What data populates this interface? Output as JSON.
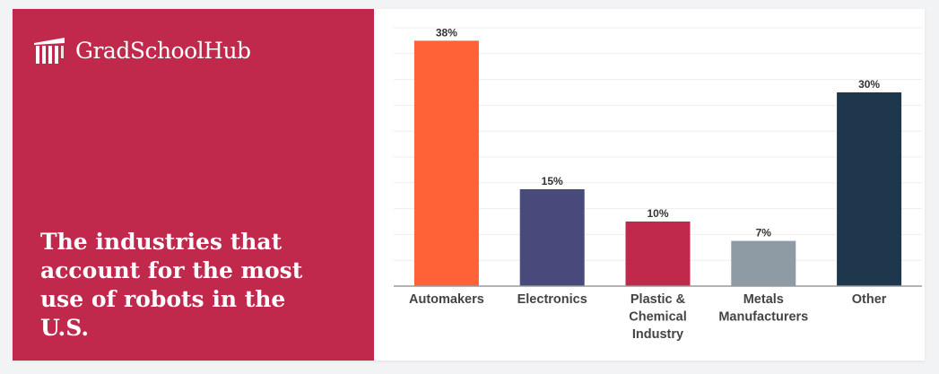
{
  "brand": {
    "name": "GradSchoolHub",
    "panel_color": "#c0284c",
    "logo_icon": "columns-building-icon"
  },
  "headline": "The industries that account for the most use of robots in the U.S.",
  "chart_data": {
    "type": "bar",
    "categories": [
      "Automakers",
      "Electronics",
      "Plastic & Chemical Industry",
      "Metals Manufacturers",
      "Other"
    ],
    "category_lines": [
      [
        "Automakers"
      ],
      [
        "Electronics"
      ],
      [
        "Plastic &",
        "Chemical",
        "Industry"
      ],
      [
        "Metals",
        "Manufacturers"
      ],
      [
        "Other"
      ]
    ],
    "values": [
      38,
      15,
      10,
      7,
      30
    ],
    "value_labels": [
      "38%",
      "15%",
      "10%",
      "7%",
      "30%"
    ],
    "colors": [
      "#ff6237",
      "#474a7a",
      "#c0284c",
      "#8f9ba4",
      "#1e374c"
    ],
    "ylim": [
      0,
      40
    ],
    "grid": true,
    "legend": "none",
    "title": "",
    "xlabel": "",
    "ylabel": ""
  }
}
